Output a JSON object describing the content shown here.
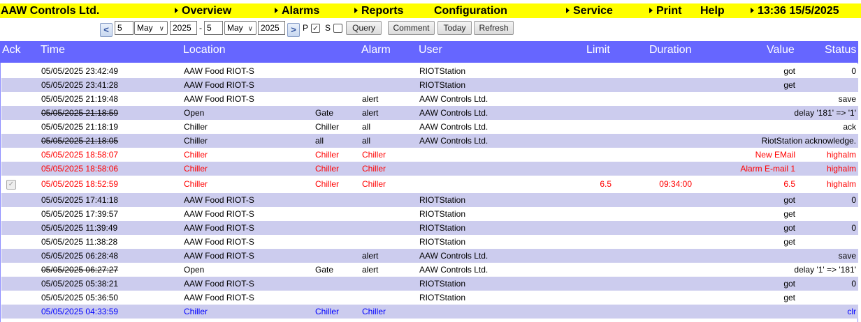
{
  "menu": {
    "company": "AAW Controls Ltd.",
    "overview": "Overview",
    "alarms": "Alarms",
    "reports": "Reports",
    "configuration": "Configuration",
    "service": "Service",
    "print": "Print",
    "help": "Help",
    "clock": "13:36 15/5/2025"
  },
  "filter": {
    "prev_label": "<",
    "next_label": ">",
    "from_day": "5",
    "from_month": "May",
    "from_year": "2025",
    "range_sep": "-",
    "to_day": "5",
    "to_month": "May",
    "to_year": "2025",
    "p_label": "P",
    "p_checked": true,
    "s_label": "S",
    "s_checked": false,
    "query_label": "Query",
    "comment_label": "Comment",
    "today_label": "Today",
    "refresh_label": "Refresh"
  },
  "columns": {
    "ack": "Ack",
    "time": "Time",
    "location": "Location",
    "alarm": "Alarm",
    "user": "User",
    "limit": "Limit",
    "duration": "Duration",
    "value": "Value",
    "status": "Status"
  },
  "colors": {
    "menu_bg": "#ffff00",
    "header_bg": "#6666ff",
    "row_alt": "#ccccee",
    "alarm_red": "#ff0000",
    "clear_blue": "#0000ff"
  },
  "rows": [
    {
      "time": "05/05/2025 23:42:49",
      "location": "AAW Food RIOT-S",
      "type": "",
      "alarm": "",
      "user": "RIOTStation",
      "limit": "",
      "duration": "",
      "value": "got",
      "status": "0",
      "style": "normal",
      "strike": false,
      "ack": false
    },
    {
      "time": "05/05/2025 23:41:28",
      "location": "AAW Food RIOT-S",
      "type": "",
      "alarm": "",
      "user": "RIOTStation",
      "limit": "",
      "duration": "",
      "value": "get",
      "status": "",
      "style": "normal",
      "strike": false,
      "ack": false
    },
    {
      "time": "05/05/2025 21:19:48",
      "location": "AAW Food RIOT-S",
      "type": "",
      "alarm": "alert",
      "user": "AAW Controls Ltd.",
      "limit": "",
      "duration": "",
      "value": "",
      "status": "save",
      "style": "normal",
      "strike": false,
      "ack": false
    },
    {
      "time": "05/05/2025 21:18:59",
      "location": "Open",
      "type": "Gate",
      "alarm": "alert",
      "user": "AAW Controls Ltd.",
      "limit": "",
      "duration": "",
      "value": "",
      "status": "delay '181' => '1'",
      "style": "normal",
      "strike": true,
      "ack": false
    },
    {
      "time": "05/05/2025 21:18:19",
      "location": "Chiller",
      "type": "Chiller",
      "alarm": "all",
      "user": "AAW Controls Ltd.",
      "limit": "",
      "duration": "",
      "value": "",
      "status": "ack",
      "style": "normal",
      "strike": false,
      "ack": false
    },
    {
      "time": "05/05/2025 21:18:05",
      "location": "Chiller",
      "type": "all",
      "alarm": "all",
      "user": "AAW Controls Ltd.",
      "limit": "",
      "duration": "",
      "value": "",
      "status": "RiotStation acknowledge.",
      "style": "normal",
      "strike": true,
      "ack": false
    },
    {
      "time": "05/05/2025 18:58:07",
      "location": "Chiller",
      "type": "Chiller",
      "alarm": "Chiller",
      "user": "",
      "limit": "",
      "duration": "",
      "value": "New EMail",
      "status": "highalm",
      "style": "red",
      "strike": false,
      "ack": false
    },
    {
      "time": "05/05/2025 18:58:06",
      "location": "Chiller",
      "type": "Chiller",
      "alarm": "Chiller",
      "user": "",
      "limit": "",
      "duration": "",
      "value": "Alarm E-mail 1",
      "status": "highalm",
      "style": "red",
      "strike": false,
      "ack": false
    },
    {
      "time": "05/05/2025 18:52:59",
      "location": "Chiller",
      "type": "Chiller",
      "alarm": "Chiller",
      "user": "",
      "limit": "6.5",
      "duration": "09:34:00",
      "value": "6.5",
      "status": "highalm",
      "style": "red",
      "strike": false,
      "ack": true
    },
    {
      "time": "05/05/2025 17:41:18",
      "location": "AAW Food RIOT-S",
      "type": "",
      "alarm": "",
      "user": "RIOTStation",
      "limit": "",
      "duration": "",
      "value": "got",
      "status": "0",
      "style": "normal",
      "strike": false,
      "ack": false
    },
    {
      "time": "05/05/2025 17:39:57",
      "location": "AAW Food RIOT-S",
      "type": "",
      "alarm": "",
      "user": "RIOTStation",
      "limit": "",
      "duration": "",
      "value": "get",
      "status": "",
      "style": "normal",
      "strike": false,
      "ack": false
    },
    {
      "time": "05/05/2025 11:39:49",
      "location": "AAW Food RIOT-S",
      "type": "",
      "alarm": "",
      "user": "RIOTStation",
      "limit": "",
      "duration": "",
      "value": "got",
      "status": "0",
      "style": "normal",
      "strike": false,
      "ack": false
    },
    {
      "time": "05/05/2025 11:38:28",
      "location": "AAW Food RIOT-S",
      "type": "",
      "alarm": "",
      "user": "RIOTStation",
      "limit": "",
      "duration": "",
      "value": "get",
      "status": "",
      "style": "normal",
      "strike": false,
      "ack": false
    },
    {
      "time": "05/05/2025 06:28:48",
      "location": "AAW Food RIOT-S",
      "type": "",
      "alarm": "alert",
      "user": "AAW Controls Ltd.",
      "limit": "",
      "duration": "",
      "value": "",
      "status": "save",
      "style": "normal",
      "strike": false,
      "ack": false
    },
    {
      "time": "05/05/2025 06:27:27",
      "location": "Open",
      "type": "Gate",
      "alarm": "alert",
      "user": "AAW Controls Ltd.",
      "limit": "",
      "duration": "",
      "value": "",
      "status": "delay '1' => '181'",
      "style": "normal",
      "strike": true,
      "ack": false
    },
    {
      "time": "05/05/2025 05:38:21",
      "location": "AAW Food RIOT-S",
      "type": "",
      "alarm": "",
      "user": "RIOTStation",
      "limit": "",
      "duration": "",
      "value": "got",
      "status": "0",
      "style": "normal",
      "strike": false,
      "ack": false
    },
    {
      "time": "05/05/2025 05:36:50",
      "location": "AAW Food RIOT-S",
      "type": "",
      "alarm": "",
      "user": "RIOTStation",
      "limit": "",
      "duration": "",
      "value": "get",
      "status": "",
      "style": "normal",
      "strike": false,
      "ack": false
    },
    {
      "time": "05/05/2025 04:33:59",
      "location": "Chiller",
      "type": "Chiller",
      "alarm": "Chiller",
      "user": "",
      "limit": "",
      "duration": "",
      "value": "",
      "status": "clr",
      "style": "blue",
      "strike": false,
      "ack": false
    }
  ]
}
